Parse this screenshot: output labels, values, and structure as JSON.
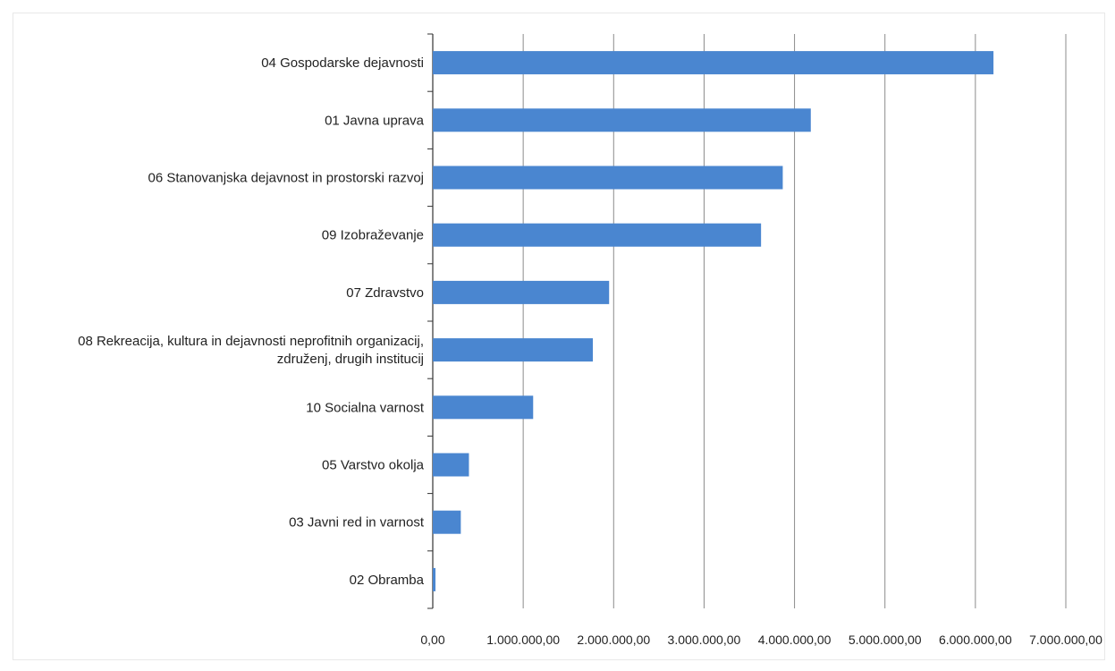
{
  "chart_data": {
    "type": "bar",
    "orientation": "horizontal",
    "title": "",
    "xlabel": "",
    "ylabel": "",
    "categories": [
      "04 Gospodarske dejavnosti",
      "01 Javna uprava",
      "06 Stanovanjska dejavnost in prostorski razvoj",
      "09 Izobraževanje",
      "07 Zdravstvo",
      "08 Rekreacija, kultura in dejavnosti neprofitnih organizacij, združenj, drugih institucij",
      "10 Socialna varnost",
      "05 Varstvo okolja",
      "03 Javni red in varnost",
      "02 Obramba"
    ],
    "category_lines": [
      [
        "04 Gospodarske dejavnosti"
      ],
      [
        "01 Javna uprava"
      ],
      [
        "06 Stanovanjska dejavnost in prostorski razvoj"
      ],
      [
        "09 Izobraževanje"
      ],
      [
        "07 Zdravstvo"
      ],
      [
        "08 Rekreacija, kultura in dejavnosti neprofitnih organizacij,",
        "združenj, drugih institucij"
      ],
      [
        "10 Socialna varnost"
      ],
      [
        "05 Varstvo okolja"
      ],
      [
        "03 Javni red in varnost"
      ],
      [
        "02 Obramba"
      ]
    ],
    "values": [
      6200000,
      4180000,
      3870000,
      3630000,
      1950000,
      1770000,
      1110000,
      400000,
      310000,
      30000
    ],
    "xlim": [
      0,
      7000000
    ],
    "xticks": [
      0,
      1000000,
      2000000,
      3000000,
      4000000,
      5000000,
      6000000,
      7000000
    ],
    "xtick_labels": [
      "0,00",
      "1.000.000,00",
      "2.000.000,00",
      "3.000.000,00",
      "4.000.000,00",
      "5.000.000,00",
      "6.000.000,00",
      "7.000.000,00"
    ],
    "grid": true,
    "legend": "none",
    "bar_color": "#4a86d0",
    "grid_color": "#8c8c8c",
    "axis_color": "#333333"
  }
}
